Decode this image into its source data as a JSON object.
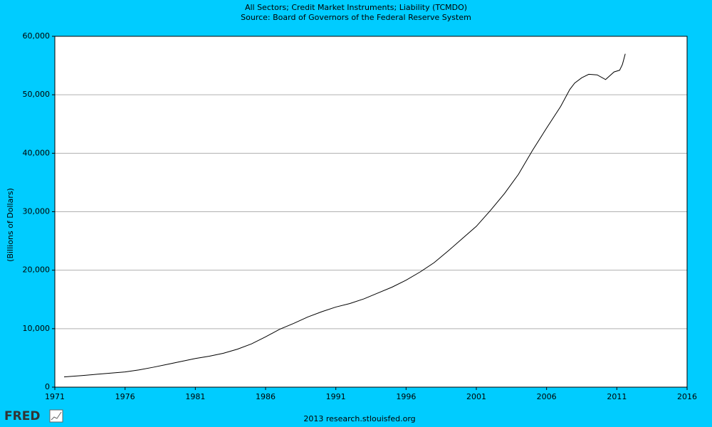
{
  "chart_data": {
    "type": "line",
    "title": "All Sectors; Credit Market Instruments; Liability (TCMDO)",
    "subtitle": "Source: Board of Governors of the Federal Reserve System",
    "y_label": "(Billions of Dollars)",
    "footer": "2013 research.stlouisfed.org",
    "logo": "FRED",
    "color": "#000000",
    "x": [
      1971.66,
      1973,
      1974,
      1975,
      1976,
      1977,
      1978,
      1979,
      1980,
      1981,
      1982,
      1983,
      1984,
      1985,
      1986,
      1987,
      1988,
      1989,
      1990,
      1991,
      1992,
      1993,
      1994,
      1995,
      1996,
      1997,
      1998,
      1999,
      2000,
      2001,
      2002,
      2003,
      2004,
      2005,
      2006,
      2007,
      2007.65,
      2008,
      2008.5,
      2009,
      2009.6,
      2010.2,
      2010.8,
      2011.2,
      2011.4,
      2011.6
    ],
    "values": [
      1750,
      2000,
      2200,
      2400,
      2600,
      2950,
      3400,
      3900,
      4400,
      4900,
      5300,
      5800,
      6500,
      7400,
      8600,
      9900,
      10900,
      12000,
      12900,
      13700,
      14300,
      15100,
      16100,
      17100,
      18300,
      19700,
      21300,
      23300,
      25400,
      27500,
      30200,
      33100,
      36400,
      40500,
      44300,
      48000,
      50900,
      52000,
      52900,
      53500,
      53400,
      52600,
      53900,
      54200,
      55200,
      57000
    ],
    "xlim": [
      1971,
      2016
    ],
    "xticks": [
      1971,
      1976,
      1981,
      1986,
      1991,
      1996,
      2001,
      2006,
      2011,
      2016
    ],
    "ylim": [
      0,
      60000
    ],
    "yticks": [
      0,
      {
        "value": 10000,
        "label": "10,000"
      },
      {
        "value": 20000,
        "label": "20,000"
      },
      {
        "value": 30000,
        "label": "30,000"
      },
      {
        "value": 40000,
        "label": "40,000"
      },
      {
        "value": 50000,
        "label": "50,000"
      },
      {
        "value": 60000,
        "label": "60,000"
      }
    ],
    "grid": true
  }
}
